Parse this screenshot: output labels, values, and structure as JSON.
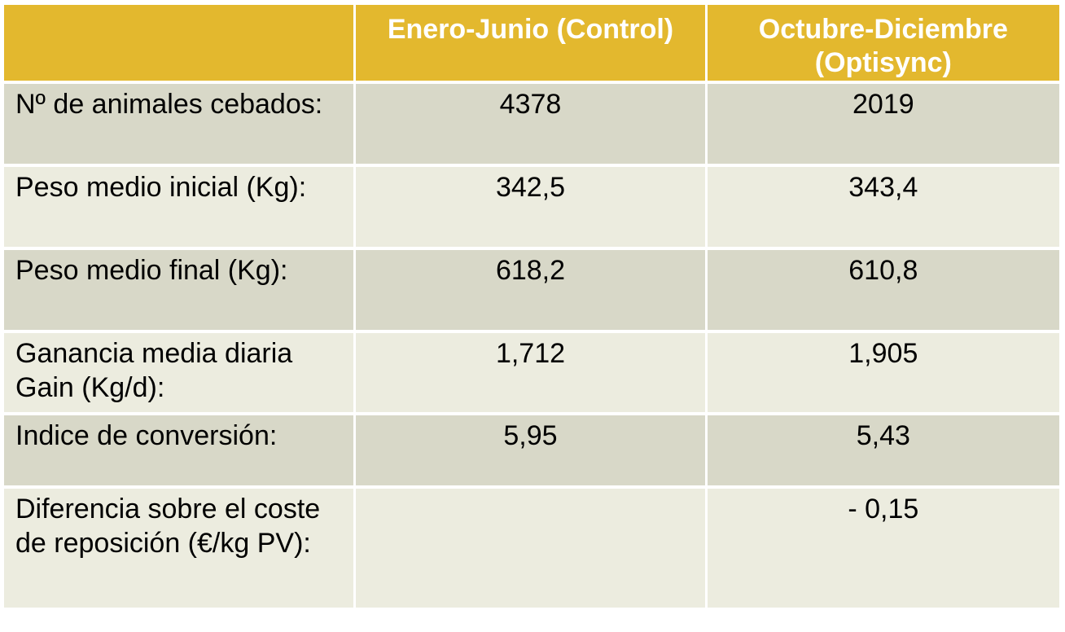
{
  "colors": {
    "header_bg": "#e3b82e",
    "header_text": "#ffffff",
    "row_dark": "#d8d8c8",
    "row_light": "#ececdf"
  },
  "table": {
    "headers": [
      "",
      "Enero-Junio  (Control)",
      "Octubre-Diciembre (Optisync)"
    ],
    "rows": [
      {
        "label": "Nº de animales cebados:",
        "control": "4378",
        "optisync": "2019"
      },
      {
        "label": "Peso medio inicial (Kg):",
        "control": "342,5",
        "optisync": "343,4"
      },
      {
        "label": "Peso medio final (Kg):",
        "control": "618,2",
        "optisync": "610,8"
      },
      {
        "label": "Ganancia media diaria Gain (Kg/d):",
        "control": "1,712",
        "optisync": "1,905"
      },
      {
        "label": "Indice de conversión:",
        "control": "5,95",
        "optisync": "5,43"
      },
      {
        "label": "Diferencia sobre el coste de reposición (€/kg PV):",
        "control": "",
        "optisync": "- 0,15"
      }
    ]
  }
}
